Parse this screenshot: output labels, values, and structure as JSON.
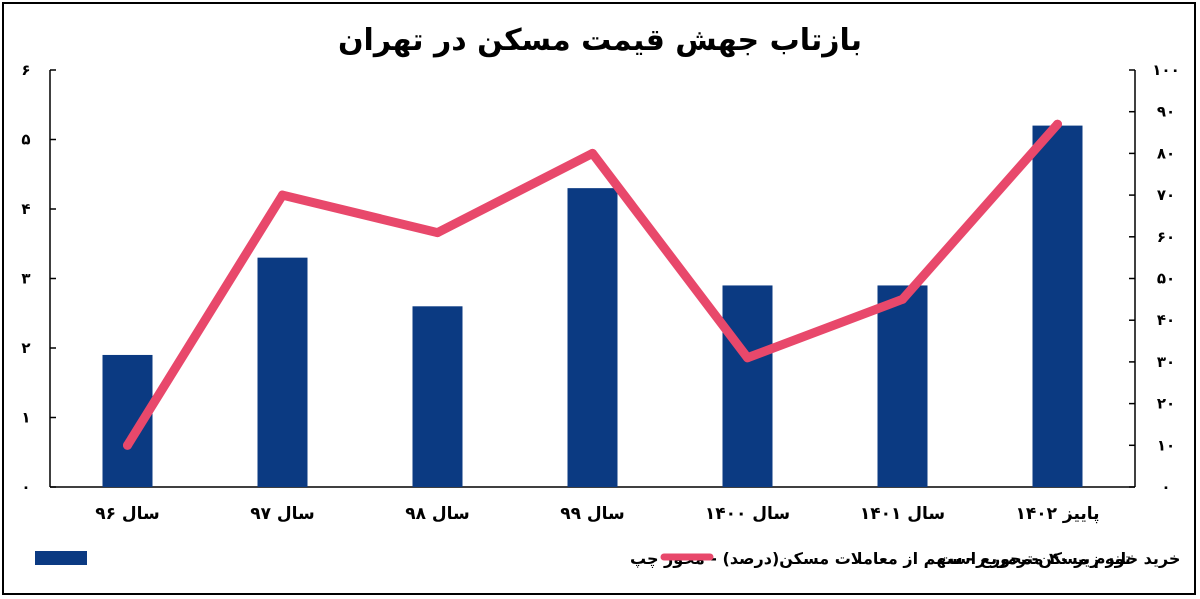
{
  "chart_data": {
    "type": "bar",
    "title": "بازتاب جهش قیمت مسکن در تهران",
    "categories": [
      "سال ۹۶",
      "سال ۹۷",
      "سال ۹۸",
      "سال ۹۹",
      "سال ۱۴۰۰",
      "سال ۱۴۰۱",
      "پاییز ۱۴۰۲"
    ],
    "series": [
      {
        "name": "خرید خانه زیر ۴۰ مترمربع - سهم از معاملات مسکن(درصد) - محور چپ",
        "type": "bar",
        "axis": "left",
        "color": "#0b3a82",
        "values": [
          1.9,
          3.3,
          2.6,
          4.3,
          2.9,
          2.9,
          5.2
        ]
      },
      {
        "name": "تورم مسکن-محور راست",
        "type": "line",
        "axis": "right",
        "color": "#e8486b",
        "values": [
          10,
          70,
          61,
          80,
          31,
          45,
          87
        ]
      }
    ],
    "y_left": {
      "min": 0,
      "max": 6,
      "ticks": [
        "۰",
        "۱",
        "۲",
        "۳",
        "۴",
        "۵",
        "۶"
      ]
    },
    "y_right": {
      "min": 0,
      "max": 100,
      "ticks": [
        "۰",
        "۱۰",
        "۲۰",
        "۳۰",
        "۴۰",
        "۵۰",
        "۶۰",
        "۷۰",
        "۸۰",
        "۹۰",
        "۱۰۰"
      ]
    },
    "legend_position": "bottom",
    "grid": false
  }
}
